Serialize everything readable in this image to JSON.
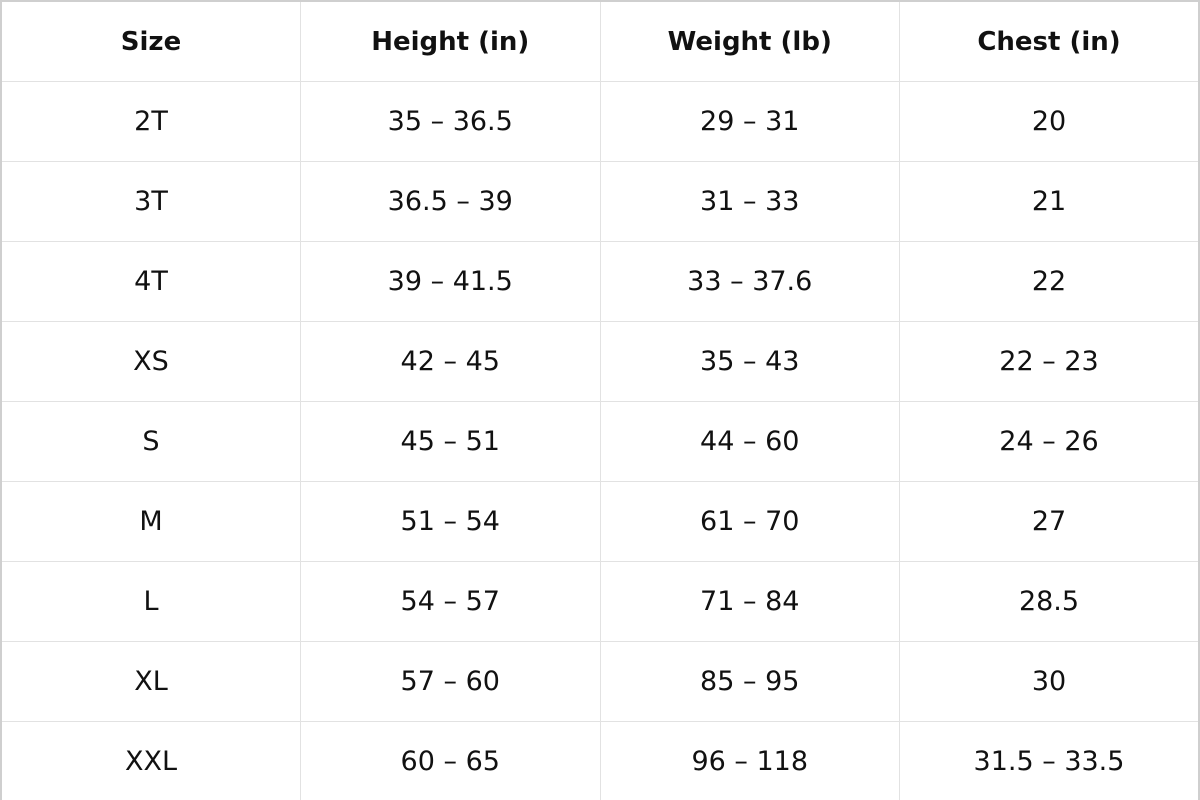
{
  "table": {
    "header": [
      "Size",
      "Height (in)",
      "Weight (lb)",
      "Chest (in)"
    ],
    "rows": [
      [
        "2T",
        "35 – 36.5",
        "29 – 31",
        "20"
      ],
      [
        "3T",
        "36.5 – 39",
        "31 – 33",
        "21"
      ],
      [
        "4T",
        "39 – 41.5",
        "33 – 37.6",
        "22"
      ],
      [
        "XS",
        "42 – 45",
        "35 – 43",
        "22 – 23"
      ],
      [
        "S",
        "45 – 51",
        "44 – 60",
        "24 – 26"
      ],
      [
        "M",
        "51 – 54",
        "61 – 70",
        "27"
      ],
      [
        "L",
        "54 – 57",
        "71 – 84",
        "28.5"
      ],
      [
        "XL",
        "57 – 60",
        "85 – 95",
        "30"
      ],
      [
        "XXL",
        "60 – 65",
        "96 – 118",
        "31.5 – 33.5"
      ]
    ]
  }
}
